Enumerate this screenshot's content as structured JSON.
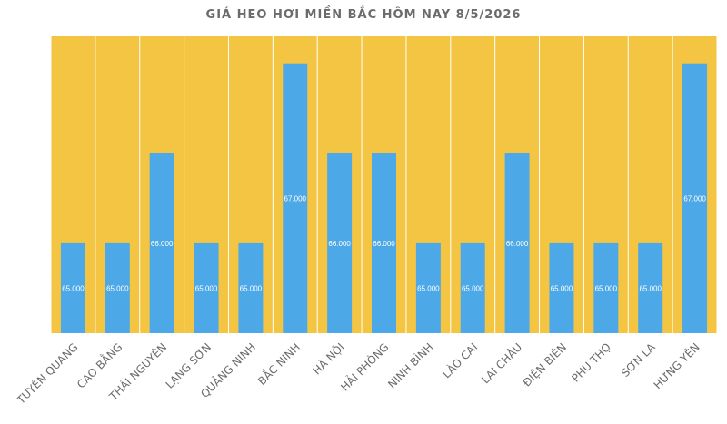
{
  "chart_data": {
    "type": "bar",
    "title": "GIÁ HEO HƠI MIỀN BẮC HÔM NAY 8/5/2026",
    "xlabel": "",
    "ylabel": "",
    "categories": [
      "TUYÊN QUANG",
      "CAO BẰNG",
      "THÁI NGUYÊN",
      "LẠNG SƠN",
      "QUẢNG NINH",
      "BẮC NINH",
      "HÀ NỘI",
      "HẢI PHÒNG",
      "NINH BÌNH",
      "LÀO CAI",
      "LAI CHÂU",
      "ĐIỆN BIÊN",
      "PHÚ THỌ",
      "SƠN LA",
      "HƯNG YÊN"
    ],
    "values": [
      65000,
      65000,
      66000,
      65000,
      65000,
      67000,
      66000,
      66000,
      65000,
      65000,
      66000,
      65000,
      65000,
      65000,
      67000
    ],
    "value_labels": [
      "65.000",
      "65.000",
      "66.000",
      "65.000",
      "65.000",
      "67.000",
      "66.000",
      "66.000",
      "65.000",
      "65.000",
      "66.000",
      "65.000",
      "65.000",
      "65.000",
      "67.000"
    ],
    "ylim": [
      64000,
      67300
    ],
    "grid": false,
    "legend": "none",
    "colors": {
      "bar": "#4DA8E8",
      "column_bg": "#F4C542",
      "separator": "#ffffff",
      "text": "#6b6b6b",
      "value_text": "#ffffff"
    }
  }
}
